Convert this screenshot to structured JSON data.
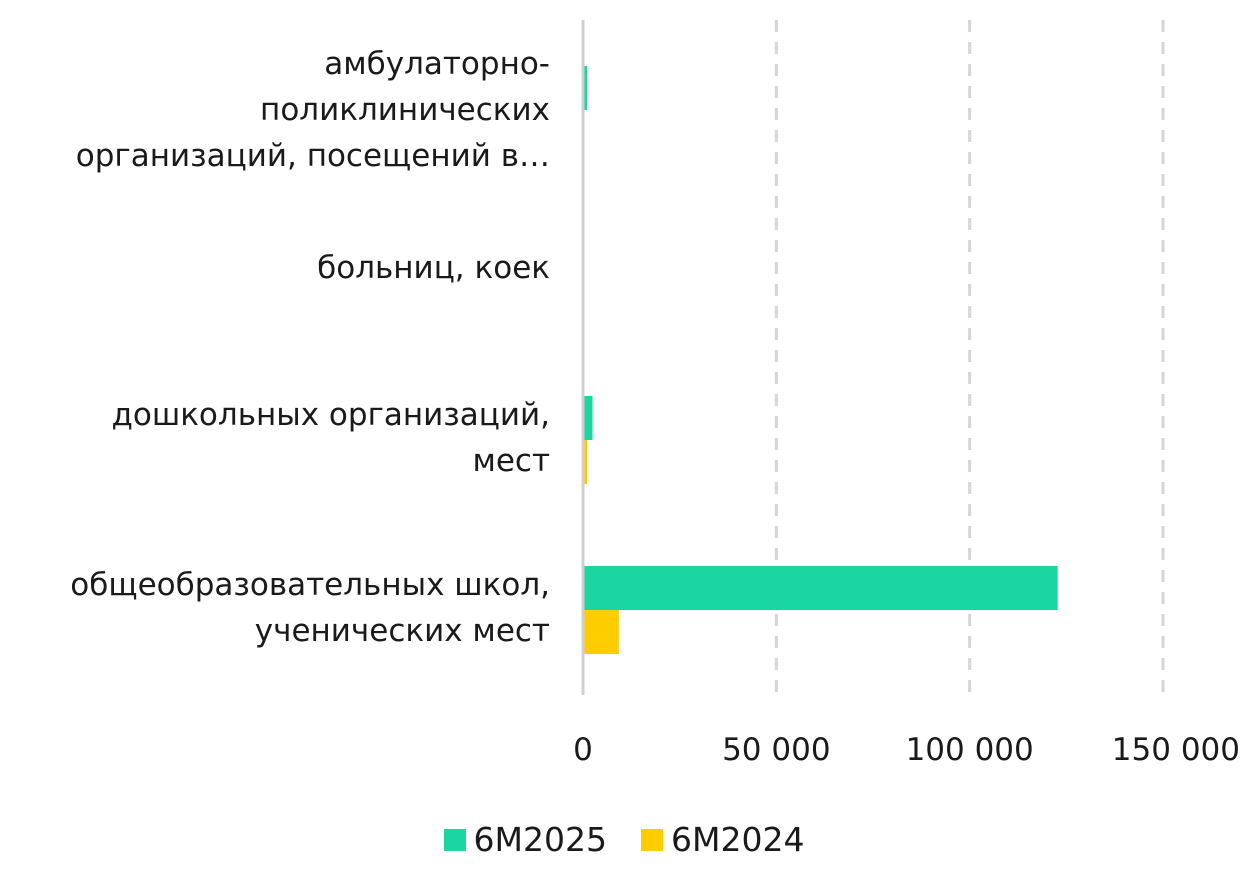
{
  "chart_data": {
    "type": "bar",
    "orientation": "horizontal",
    "categories": [
      "амбулаторно-\nполиклинических\nорганизаций, посещений в…",
      "больниц, коек",
      "дошкольных организаций,\nмест",
      "общеобразовательных школ,\nученических мест"
    ],
    "series": [
      {
        "name": "6М2025",
        "color": "#1ad6a0",
        "values": [
          600,
          0,
          2200,
          122500
        ]
      },
      {
        "name": "6М2024",
        "color": "#ffcc00",
        "values": [
          0,
          0,
          800,
          9000
        ]
      }
    ],
    "xlim": [
      0,
      150000
    ],
    "xticks": [
      0,
      50000,
      100000,
      150000
    ],
    "xtick_labels": [
      "0",
      "50 000",
      "100 000",
      "150 000"
    ],
    "grid": "vertical-dashed",
    "legend_position": "bottom"
  }
}
